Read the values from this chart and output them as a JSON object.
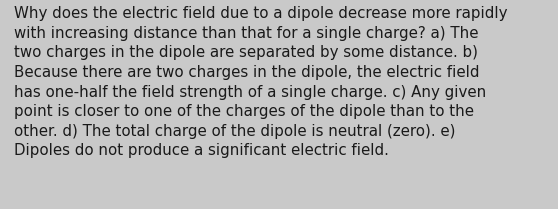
{
  "lines": [
    "Why does the electric field due to a dipole decrease more rapidly",
    "with increasing distance than that for a single charge? a) The",
    "two charges in the dipole are separated by some distance. b)",
    "Because there are two charges in the dipole, the electric field",
    "has one-half the field strength of a single charge. c) Any given",
    "point is closer to one of the charges of the dipole than to the",
    "other. d) The total charge of the dipole is neutral (zero). e)",
    "Dipoles do not produce a significant electric field."
  ],
  "background_color": "#c9c9c9",
  "text_color": "#1a1a1a",
  "font_size": 10.8,
  "fig_width": 5.58,
  "fig_height": 2.09,
  "dpi": 100
}
